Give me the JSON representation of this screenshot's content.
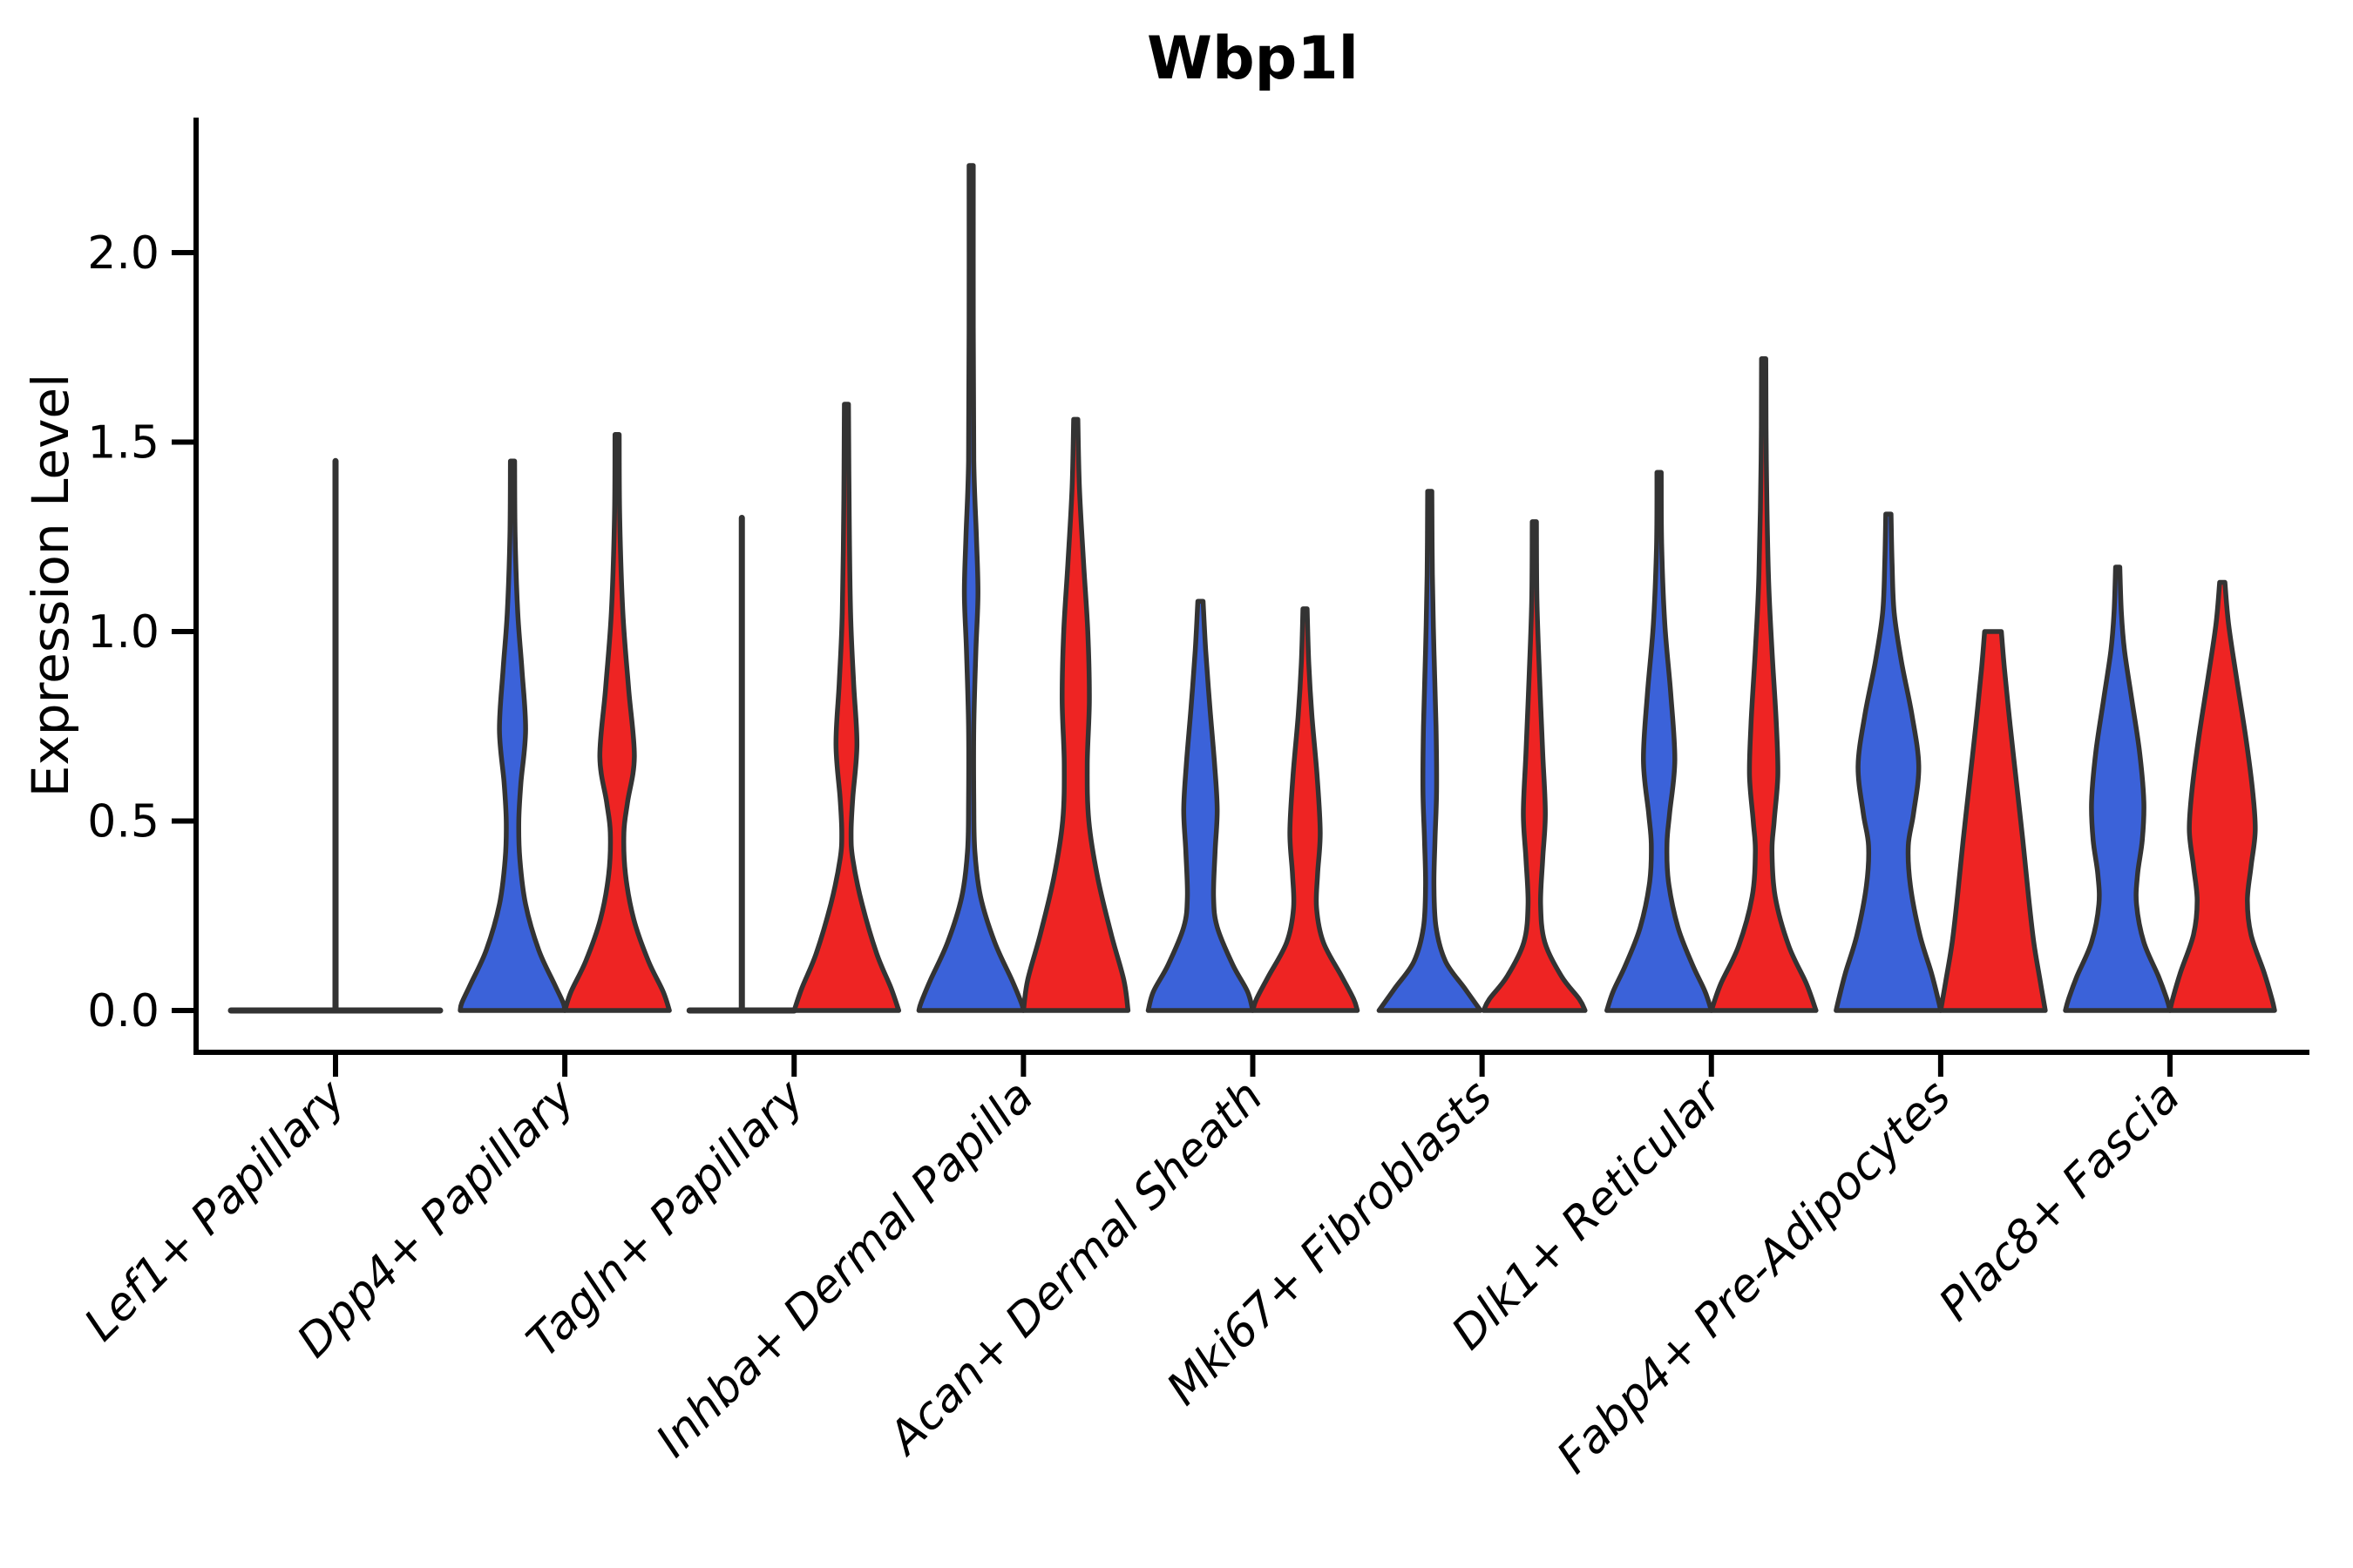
{
  "chart_data": {
    "type": "violin",
    "title": "Wbp1l",
    "ylabel": "Expression Level",
    "xlabel": "",
    "ylim": [
      -0.11,
      2.35
    ],
    "yticks": [
      0.0,
      0.5,
      1.0,
      1.5,
      2.0
    ],
    "ytick_labels": [
      "0.0",
      "0.5",
      "1.0",
      "1.5",
      "2.0"
    ],
    "grid": false,
    "legend_position": "none",
    "colors": {
      "blue": "#3B62D9",
      "red": "#EE2423",
      "outline": "#333333",
      "axis": "#000000"
    },
    "categories": [
      "Lef1+ Papillary",
      "Dpp4+ Papillary",
      "Tagln+ Papillary",
      "Inhba+ Dermal Papilla",
      "Acan+ Dermal Sheath",
      "Mki67+ Fibroblasts",
      "Dlk1+ Reticular",
      "Fabp4+ Pre-Adipocytes",
      "Plac8+ Fascia"
    ],
    "series": [
      {
        "name": "group-blue",
        "color": "#3B62D9",
        "violins": [
          {
            "category": "Lef1+ Papillary",
            "shape": "spike",
            "span": "full",
            "max": 1.45
          },
          {
            "category": "Dpp4+ Papillary",
            "shape": "violin",
            "max": 1.45,
            "profile": [
              [
                1.45,
                0.04
              ],
              [
                1.25,
                0.05
              ],
              [
                1.05,
                0.1
              ],
              [
                0.9,
                0.18
              ],
              [
                0.74,
                0.25
              ],
              [
                0.6,
                0.16
              ],
              [
                0.5,
                0.12
              ],
              [
                0.4,
                0.14
              ],
              [
                0.28,
                0.25
              ],
              [
                0.16,
                0.5
              ],
              [
                0.07,
                0.8
              ],
              [
                0.02,
                0.97
              ],
              [
                0,
                1
              ]
            ]
          },
          {
            "category": "Tagln+ Papillary",
            "shape": "spike",
            "span": "half",
            "max": 1.3
          },
          {
            "category": "Inhba+ Dermal Papilla",
            "shape": "violin",
            "max": 2.23,
            "profile": [
              [
                2.23,
                0.04
              ],
              [
                1.8,
                0.04
              ],
              [
                1.45,
                0.05
              ],
              [
                1.25,
                0.1
              ],
              [
                1.1,
                0.13
              ],
              [
                0.95,
                0.09
              ],
              [
                0.75,
                0.05
              ],
              [
                0.55,
                0.05
              ],
              [
                0.42,
                0.07
              ],
              [
                0.3,
                0.18
              ],
              [
                0.18,
                0.45
              ],
              [
                0.08,
                0.78
              ],
              [
                0.02,
                0.96
              ],
              [
                0,
                1
              ]
            ]
          },
          {
            "category": "Acan+ Dermal Sheath",
            "shape": "violin",
            "max": 1.08,
            "profile": [
              [
                1.08,
                0.05
              ],
              [
                0.95,
                0.1
              ],
              [
                0.8,
                0.18
              ],
              [
                0.65,
                0.27
              ],
              [
                0.53,
                0.32
              ],
              [
                0.42,
                0.28
              ],
              [
                0.3,
                0.25
              ],
              [
                0.22,
                0.32
              ],
              [
                0.12,
                0.62
              ],
              [
                0.05,
                0.9
              ],
              [
                0,
                1
              ]
            ]
          },
          {
            "category": "Mki67+ Fibroblasts",
            "shape": "violin",
            "max": 1.37,
            "profile": [
              [
                1.37,
                0.04
              ],
              [
                1.15,
                0.05
              ],
              [
                0.95,
                0.08
              ],
              [
                0.75,
                0.12
              ],
              [
                0.58,
                0.13
              ],
              [
                0.45,
                0.1
              ],
              [
                0.33,
                0.08
              ],
              [
                0.22,
                0.12
              ],
              [
                0.13,
                0.3
              ],
              [
                0.06,
                0.66
              ],
              [
                0,
                0.97
              ]
            ]
          },
          {
            "category": "Dlk1+ Reticular",
            "shape": "violin",
            "max": 1.42,
            "profile": [
              [
                1.42,
                0.04
              ],
              [
                1.22,
                0.05
              ],
              [
                1.02,
                0.11
              ],
              [
                0.84,
                0.22
              ],
              [
                0.66,
                0.3
              ],
              [
                0.52,
                0.2
              ],
              [
                0.44,
                0.15
              ],
              [
                0.34,
                0.18
              ],
              [
                0.22,
                0.36
              ],
              [
                0.12,
                0.64
              ],
              [
                0.05,
                0.88
              ],
              [
                0,
                1
              ]
            ]
          },
          {
            "category": "Fabp4+ Pre-Adipocytes",
            "shape": "violin",
            "max": 1.31,
            "profile": [
              [
                1.31,
                0.05
              ],
              [
                1.18,
                0.07
              ],
              [
                1.05,
                0.11
              ],
              [
                0.92,
                0.25
              ],
              [
                0.78,
                0.45
              ],
              [
                0.645,
                0.58
              ],
              [
                0.52,
                0.48
              ],
              [
                0.435,
                0.38
              ],
              [
                0.33,
                0.42
              ],
              [
                0.2,
                0.6
              ],
              [
                0.1,
                0.82
              ],
              [
                0.03,
                0.95
              ],
              [
                0,
                1
              ]
            ]
          },
          {
            "category": "Plac8+ Fascia",
            "shape": "violin",
            "max": 1.17,
            "profile": [
              [
                1.17,
                0.04
              ],
              [
                1.05,
                0.07
              ],
              [
                0.95,
                0.13
              ],
              [
                0.82,
                0.27
              ],
              [
                0.68,
                0.42
              ],
              [
                0.55,
                0.5
              ],
              [
                0.45,
                0.47
              ],
              [
                0.36,
                0.38
              ],
              [
                0.28,
                0.36
              ],
              [
                0.18,
                0.5
              ],
              [
                0.09,
                0.78
              ],
              [
                0.03,
                0.94
              ],
              [
                0,
                1
              ]
            ]
          }
        ]
      },
      {
        "name": "group-red",
        "color": "#EE2423",
        "violins": [
          {
            "category": "Lef1+ Papillary",
            "shape": "none",
            "max": 0
          },
          {
            "category": "Dpp4+ Papillary",
            "shape": "violin",
            "max": 1.52,
            "profile": [
              [
                1.52,
                0.04
              ],
              [
                1.3,
                0.05
              ],
              [
                1.05,
                0.11
              ],
              [
                0.85,
                0.22
              ],
              [
                0.67,
                0.33
              ],
              [
                0.55,
                0.2
              ],
              [
                0.47,
                0.13
              ],
              [
                0.36,
                0.16
              ],
              [
                0.24,
                0.32
              ],
              [
                0.13,
                0.6
              ],
              [
                0.05,
                0.88
              ],
              [
                0,
                1
              ]
            ]
          },
          {
            "category": "Tagln+ Papillary",
            "shape": "violin",
            "max": 1.6,
            "profile": [
              [
                1.6,
                0.04
              ],
              [
                1.35,
                0.05
              ],
              [
                1.05,
                0.08
              ],
              [
                0.86,
                0.14
              ],
              [
                0.7,
                0.2
              ],
              [
                0.56,
                0.12
              ],
              [
                0.47,
                0.09
              ],
              [
                0.4,
                0.12
              ],
              [
                0.28,
                0.3
              ],
              [
                0.15,
                0.58
              ],
              [
                0.06,
                0.85
              ],
              [
                0,
                1
              ]
            ]
          },
          {
            "category": "Inhba+ Dermal Papilla",
            "shape": "violin",
            "max": 1.56,
            "profile": [
              [
                1.56,
                0.04
              ],
              [
                1.38,
                0.07
              ],
              [
                1.18,
                0.15
              ],
              [
                1.0,
                0.23
              ],
              [
                0.82,
                0.26
              ],
              [
                0.65,
                0.22
              ],
              [
                0.5,
                0.25
              ],
              [
                0.35,
                0.42
              ],
              [
                0.2,
                0.68
              ],
              [
                0.08,
                0.92
              ],
              [
                0,
                1
              ]
            ]
          },
          {
            "category": "Acan+ Dermal Sheath",
            "shape": "violin",
            "max": 1.06,
            "profile": [
              [
                1.06,
                0.04
              ],
              [
                0.92,
                0.07
              ],
              [
                0.78,
                0.13
              ],
              [
                0.62,
                0.23
              ],
              [
                0.47,
                0.29
              ],
              [
                0.36,
                0.24
              ],
              [
                0.27,
                0.22
              ],
              [
                0.18,
                0.35
              ],
              [
                0.09,
                0.7
              ],
              [
                0.03,
                0.93
              ],
              [
                0,
                1
              ]
            ]
          },
          {
            "category": "Mki67+ Fibroblasts",
            "shape": "violin",
            "max": 1.29,
            "profile": [
              [
                1.29,
                0.04
              ],
              [
                1.08,
                0.05
              ],
              [
                0.88,
                0.1
              ],
              [
                0.68,
                0.16
              ],
              [
                0.52,
                0.21
              ],
              [
                0.4,
                0.16
              ],
              [
                0.28,
                0.12
              ],
              [
                0.18,
                0.2
              ],
              [
                0.09,
                0.52
              ],
              [
                0.03,
                0.86
              ],
              [
                0,
                0.97
              ]
            ]
          },
          {
            "category": "Dlk1+ Reticular",
            "shape": "violin",
            "max": 1.72,
            "profile": [
              [
                1.72,
                0.04
              ],
              [
                1.45,
                0.05
              ],
              [
                1.15,
                0.09
              ],
              [
                0.95,
                0.16
              ],
              [
                0.76,
                0.24
              ],
              [
                0.62,
                0.27
              ],
              [
                0.5,
                0.2
              ],
              [
                0.42,
                0.16
              ],
              [
                0.3,
                0.22
              ],
              [
                0.17,
                0.48
              ],
              [
                0.07,
                0.82
              ],
              [
                0,
                1
              ]
            ]
          },
          {
            "category": "Fabp4+ Pre-Adipocytes",
            "shape": "violin",
            "max": 1.0,
            "profile": [
              [
                1.0,
                0.16
              ],
              [
                0.9,
                0.22
              ],
              [
                0.75,
                0.33
              ],
              [
                0.6,
                0.45
              ],
              [
                0.45,
                0.57
              ],
              [
                0.3,
                0.68
              ],
              [
                0.18,
                0.78
              ],
              [
                0.08,
                0.9
              ],
              [
                0,
                1
              ]
            ]
          },
          {
            "category": "Plac8+ Fascia",
            "shape": "violin",
            "max": 1.13,
            "profile": [
              [
                1.13,
                0.05
              ],
              [
                1.02,
                0.12
              ],
              [
                0.88,
                0.27
              ],
              [
                0.72,
                0.45
              ],
              [
                0.58,
                0.58
              ],
              [
                0.475,
                0.63
              ],
              [
                0.38,
                0.55
              ],
              [
                0.29,
                0.48
              ],
              [
                0.2,
                0.55
              ],
              [
                0.1,
                0.8
              ],
              [
                0.03,
                0.95
              ],
              [
                0,
                1
              ]
            ]
          }
        ]
      }
    ]
  }
}
